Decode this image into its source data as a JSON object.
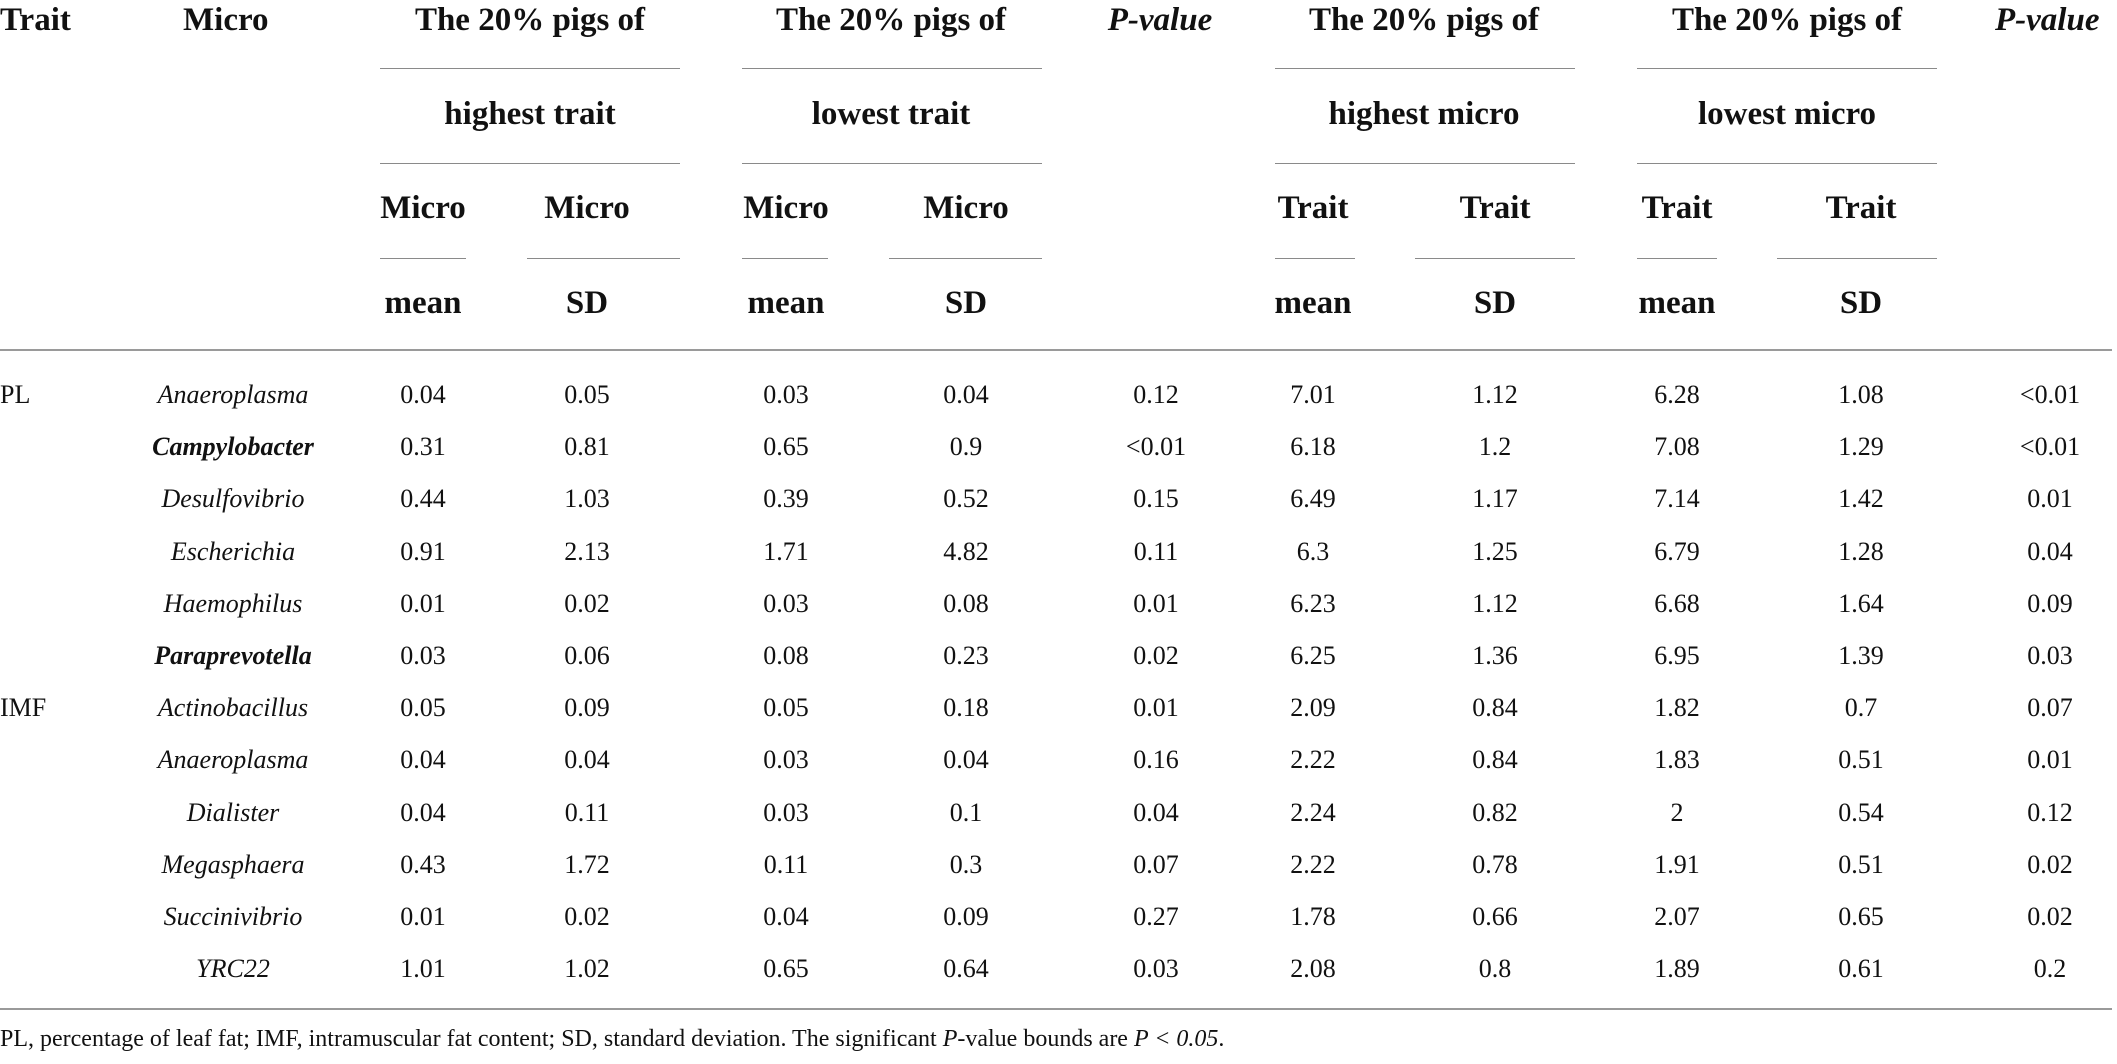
{
  "header": {
    "trait": "Trait",
    "micro": "Micro",
    "group1_line1": "The 20% pigs of",
    "group1_line2": "highest trait",
    "group2_line1": "The 20% pigs of",
    "group2_line2": "lowest trait",
    "pvalue1": "P-value",
    "group3_line1": "The 20% pigs of",
    "group3_line2": "highest micro",
    "group4_line1": "The 20% pigs of",
    "group4_line2": "lowest micro",
    "pvalue2": "P-value",
    "sub_micro": "Micro",
    "sub_trait": "Trait",
    "mean": "mean",
    "sd": "SD"
  },
  "rows": [
    {
      "trait": "PL",
      "micro": "Anaeroplasma",
      "bold": false,
      "v": [
        "0.04",
        "0.05",
        "0.03",
        "0.04",
        "0.12",
        "7.01",
        "1.12",
        "6.28",
        "1.08",
        "<0.01"
      ]
    },
    {
      "trait": "",
      "micro": "Campylobacter",
      "bold": true,
      "v": [
        "0.31",
        "0.81",
        "0.65",
        "0.9",
        "<0.01",
        "6.18",
        "1.2",
        "7.08",
        "1.29",
        "<0.01"
      ]
    },
    {
      "trait": "",
      "micro": "Desulfovibrio",
      "bold": false,
      "v": [
        "0.44",
        "1.03",
        "0.39",
        "0.52",
        "0.15",
        "6.49",
        "1.17",
        "7.14",
        "1.42",
        "0.01"
      ]
    },
    {
      "trait": "",
      "micro": "Escherichia",
      "bold": false,
      "v": [
        "0.91",
        "2.13",
        "1.71",
        "4.82",
        "0.11",
        "6.3",
        "1.25",
        "6.79",
        "1.28",
        "0.04"
      ]
    },
    {
      "trait": "",
      "micro": "Haemophilus",
      "bold": false,
      "v": [
        "0.01",
        "0.02",
        "0.03",
        "0.08",
        "0.01",
        "6.23",
        "1.12",
        "6.68",
        "1.64",
        "0.09"
      ]
    },
    {
      "trait": "",
      "micro": "Paraprevotella",
      "bold": true,
      "v": [
        "0.03",
        "0.06",
        "0.08",
        "0.23",
        "0.02",
        "6.25",
        "1.36",
        "6.95",
        "1.39",
        "0.03"
      ]
    },
    {
      "trait": "IMF",
      "micro": "Actinobacillus",
      "bold": false,
      "v": [
        "0.05",
        "0.09",
        "0.05",
        "0.18",
        "0.01",
        "2.09",
        "0.84",
        "1.82",
        "0.7",
        "0.07"
      ]
    },
    {
      "trait": "",
      "micro": "Anaeroplasma",
      "bold": false,
      "v": [
        "0.04",
        "0.04",
        "0.03",
        "0.04",
        "0.16",
        "2.22",
        "0.84",
        "1.83",
        "0.51",
        "0.01"
      ]
    },
    {
      "trait": "",
      "micro": "Dialister",
      "bold": false,
      "v": [
        "0.04",
        "0.11",
        "0.03",
        "0.1",
        "0.04",
        "2.24",
        "0.82",
        "2",
        "0.54",
        "0.12"
      ]
    },
    {
      "trait": "",
      "micro": "Megasphaera",
      "bold": false,
      "v": [
        "0.43",
        "1.72",
        "0.11",
        "0.3",
        "0.07",
        "2.22",
        "0.78",
        "1.91",
        "0.51",
        "0.02"
      ]
    },
    {
      "trait": "",
      "micro": "Succinivibrio",
      "bold": false,
      "v": [
        "0.01",
        "0.02",
        "0.04",
        "0.09",
        "0.27",
        "1.78",
        "0.66",
        "2.07",
        "0.65",
        "0.02"
      ]
    },
    {
      "trait": "",
      "micro": "YRC22",
      "bold": false,
      "v": [
        "1.01",
        "1.02",
        "0.65",
        "0.64",
        "0.03",
        "2.08",
        "0.8",
        "1.89",
        "0.61",
        "0.2"
      ]
    }
  ],
  "footnote": {
    "text": "PL, percentage of leaf fat; IMF, intramuscular fat content; SD, standard deviation. The significant ",
    "p": "P",
    "mid": "-value bounds are ",
    "expr": "P < 0.05",
    "end": "."
  }
}
